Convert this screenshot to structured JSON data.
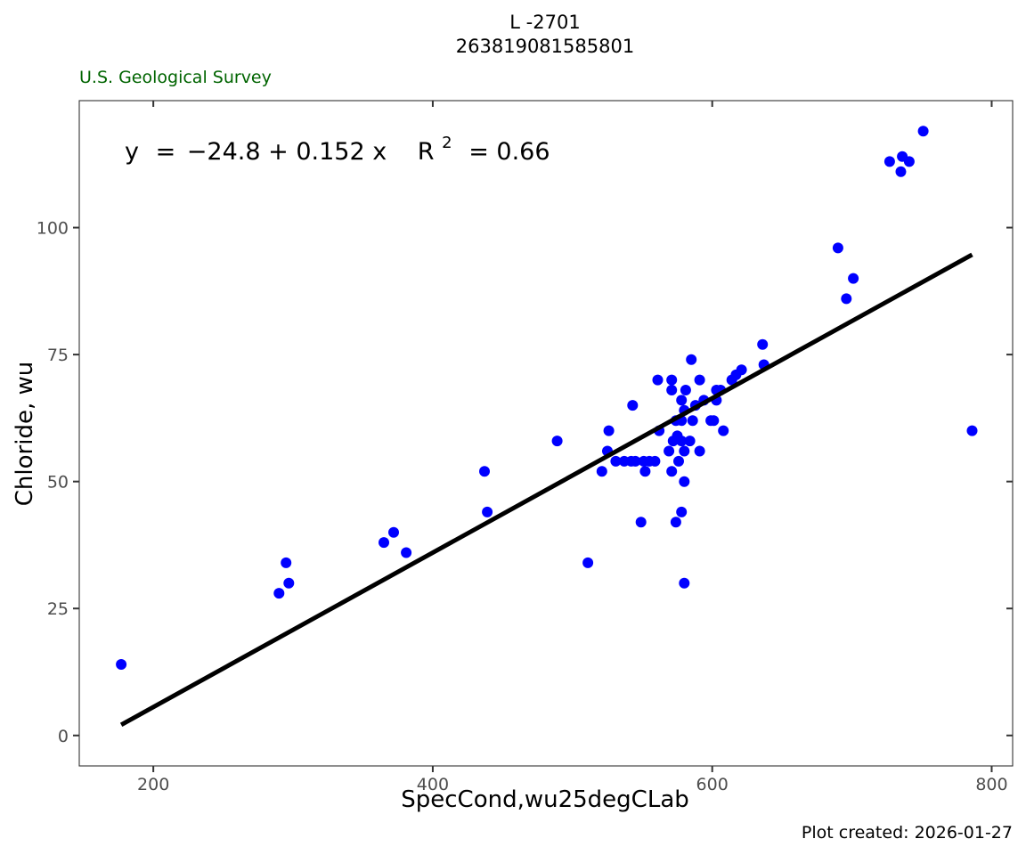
{
  "chart_data": {
    "type": "scatter",
    "title": "L -2701",
    "subtitle": "263819081585801",
    "source": "U.S. Geological Survey",
    "footer": "Plot created: 2026-01-27",
    "xlabel": "SpecCond,wu25degCLab",
    "ylabel": "Chloride, wu",
    "xlim": [
      147,
      815
    ],
    "ylim": [
      -6,
      125
    ],
    "xticks": [
      200,
      400,
      600,
      800
    ],
    "yticks": [
      0,
      25,
      50,
      75,
      100
    ],
    "grid": false,
    "colors": {
      "points": "#0000ff",
      "line": "#000000",
      "source": "#006400",
      "axis_text": "#4d4d4d"
    },
    "equation": {
      "lhs": "y",
      "rhs": "−24.8 + 0.152 x",
      "r2_label": "R",
      "r2_sup": "2",
      "r2_value": "= 0.66"
    },
    "fit": {
      "intercept": -24.8,
      "slope": 0.152,
      "x_range": [
        177,
        786
      ]
    },
    "points": [
      [
        177,
        14
      ],
      [
        290,
        28
      ],
      [
        295,
        34
      ],
      [
        297,
        30
      ],
      [
        365,
        38
      ],
      [
        372,
        40
      ],
      [
        381,
        36
      ],
      [
        437,
        52
      ],
      [
        439,
        44
      ],
      [
        489,
        58
      ],
      [
        511,
        34
      ],
      [
        521,
        52
      ],
      [
        525,
        56
      ],
      [
        526,
        60
      ],
      [
        531,
        54
      ],
      [
        537,
        54
      ],
      [
        542,
        54
      ],
      [
        545,
        54
      ],
      [
        543,
        65
      ],
      [
        549,
        42
      ],
      [
        551,
        54
      ],
      [
        552,
        52
      ],
      [
        555,
        54
      ],
      [
        559,
        54
      ],
      [
        561,
        70
      ],
      [
        562,
        60
      ],
      [
        569,
        56
      ],
      [
        571,
        70
      ],
      [
        571,
        68
      ],
      [
        571,
        52
      ],
      [
        572,
        58
      ],
      [
        574,
        62
      ],
      [
        574,
        42
      ],
      [
        575,
        59
      ],
      [
        576,
        54
      ],
      [
        578,
        58
      ],
      [
        578,
        62
      ],
      [
        578,
        66
      ],
      [
        578,
        44
      ],
      [
        580,
        56
      ],
      [
        580,
        50
      ],
      [
        580,
        30
      ],
      [
        581,
        68
      ],
      [
        580,
        64
      ],
      [
        584,
        58
      ],
      [
        585,
        74
      ],
      [
        586,
        62
      ],
      [
        588,
        65
      ],
      [
        591,
        70
      ],
      [
        591,
        56
      ],
      [
        594,
        66
      ],
      [
        599,
        62
      ],
      [
        601,
        62
      ],
      [
        603,
        66
      ],
      [
        603,
        68
      ],
      [
        606,
        68
      ],
      [
        608,
        60
      ],
      [
        614,
        70
      ],
      [
        617,
        71
      ],
      [
        621,
        72
      ],
      [
        636,
        77
      ],
      [
        637,
        73
      ],
      [
        690,
        96
      ],
      [
        696,
        86
      ],
      [
        701,
        90
      ],
      [
        727,
        113
      ],
      [
        735,
        111
      ],
      [
        736,
        114
      ],
      [
        741,
        113
      ],
      [
        751,
        119
      ],
      [
        786,
        60
      ]
    ]
  }
}
